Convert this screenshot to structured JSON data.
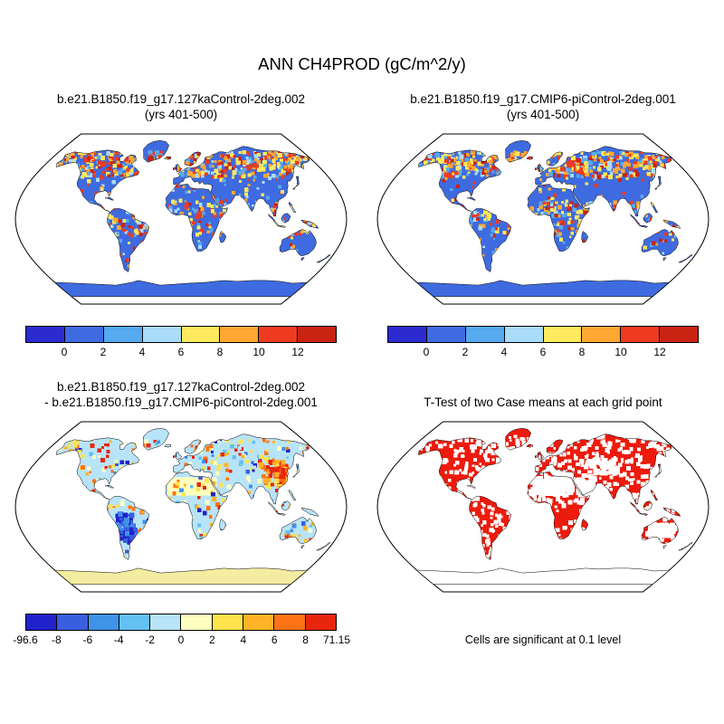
{
  "main_title": "ANN CH4PROD (gC/m^2/y)",
  "panels": {
    "top_left": {
      "title_line1": "b.e21.B1850.f19_g17.127kaControl-2deg.002",
      "title_line2": "(yrs 401-500)"
    },
    "top_right": {
      "title_line1": "b.e21.B1850.f19_g17.CMIP6-piControl-2deg.001",
      "title_line2": "(yrs 401-500)"
    },
    "bottom_left": {
      "title_line1": "b.e21.B1850.f19_g17.127kaControl-2deg.002",
      "title_line2": "- b.e21.B1850.f19_g17.CMIP6-piControl-2deg.001"
    },
    "bottom_right": {
      "title": "T-Test of two Case means at each grid point",
      "caption": "Cells are significant at 0.1 level"
    }
  },
  "colorbars": {
    "mean": {
      "colors": [
        "#2b2bd0",
        "#3f6be0",
        "#55aaf0",
        "#aadcf7",
        "#ffe95c",
        "#ffa832",
        "#ee3b1f",
        "#c92313"
      ],
      "ticks": [
        "0",
        "2",
        "4",
        "6",
        "8",
        "10",
        "12"
      ]
    },
    "diff": {
      "colors": [
        "#2222cc",
        "#3a5ee0",
        "#3f93e8",
        "#62c1f2",
        "#b8e4f9",
        "#ffffbf",
        "#ffe34d",
        "#ffb327",
        "#ff7316",
        "#e8260e"
      ],
      "ticks": [
        "-96.6",
        "-8",
        "-6",
        "-4",
        "-2",
        "0",
        "2",
        "4",
        "6",
        "8",
        "71.15"
      ]
    }
  },
  "map_style": {
    "mean_land_color": "#3f6be0",
    "diff_land_color": "#b8e4f9",
    "diff_antarctica_color": "#f4eda1",
    "ttest_significant_color": "#ed1b0c",
    "ocean_color": "#ffffff",
    "coastline_color": "#000000"
  },
  "chart_data": [
    {
      "type": "heatmap",
      "panel": "top_left",
      "title": "b.e21.B1850.f19_g17.127kaControl-2deg.002 (yrs 401-500)",
      "variable": "ANN CH4PROD",
      "units": "gC/m^2/y",
      "projection": "Robinson world map, oceans masked white",
      "levels": [
        0,
        2,
        4,
        6,
        8,
        10,
        12
      ],
      "palette": [
        "#2b2bd0",
        "#3f6be0",
        "#55aaf0",
        "#aadcf7",
        "#ffe95c",
        "#ffa832",
        "#ee3b1f",
        "#c92313"
      ],
      "summary": "Most land in 0-2 range (blue); scattered cells reaching 6 to >12 (yellow/orange/red) over boreal North America, Siberia, tropical South America, central Africa and South/Southeast Asia."
    },
    {
      "type": "heatmap",
      "panel": "top_right",
      "title": "b.e21.B1850.f19_g17.CMIP6-piControl-2deg.001 (yrs 401-500)",
      "variable": "ANN CH4PROD",
      "units": "gC/m^2/y",
      "projection": "Robinson world map, oceans masked white",
      "levels": [
        0,
        2,
        4,
        6,
        8,
        10,
        12
      ],
      "palette": [
        "#2b2bd0",
        "#3f6be0",
        "#55aaf0",
        "#aadcf7",
        "#ffe95c",
        "#ffa832",
        "#ee3b1f",
        "#c92313"
      ],
      "summary": "Same pattern as 127ka case: mostly 0-2 (blue) land with scattered high-value warm-colored cells in boreal and tropical regions."
    },
    {
      "type": "heatmap",
      "panel": "bottom_left",
      "title": "b.e21.B1850.f19_g17.127kaControl-2deg.002 - b.e21.B1850.f19_g17.CMIP6-piControl-2deg.001",
      "variable": "ANN CH4PROD difference",
      "units": "gC/m^2/y",
      "projection": "Robinson world map, oceans masked white",
      "levels": [
        -8,
        -6,
        -4,
        -2,
        0,
        2,
        4,
        6,
        8
      ],
      "data_min": -96.6,
      "data_max": 71.15,
      "palette": [
        "#2222cc",
        "#3a5ee0",
        "#3f93e8",
        "#62c1f2",
        "#b8e4f9",
        "#ffffbf",
        "#ffe34d",
        "#ffb327",
        "#ff7316",
        "#e8260e"
      ],
      "summary": "Differences mostly small: -2..0 (pale blue) and 0..2 (pale yellow, e.g. Sahara, Antarctica); scattered stronger +/- cells, a negative (blue) cluster over central South America and positive (orange/red) cells over east Asia."
    },
    {
      "type": "heatmap",
      "panel": "bottom_right",
      "title": "T-Test of two Case means at each grid point",
      "note": "Cells are significant at 0.1 level",
      "significant_color": "#ed1b0c",
      "summary": "Most land grid cells significant (solid red) with non-significant white gaps over the Sahara, Arabia, central Australia and scattered elsewhere; Antarctica outlined but not significant."
    }
  ]
}
